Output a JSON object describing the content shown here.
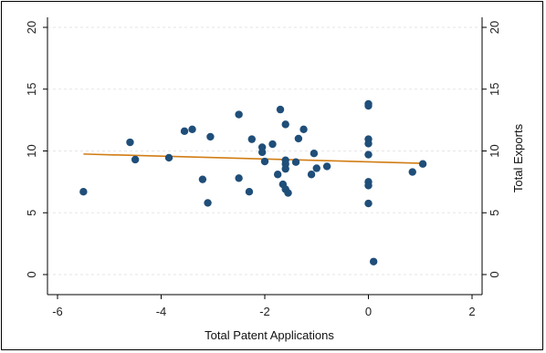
{
  "chart_data": {
    "type": "scatter",
    "title": "",
    "xlabel": "Total Patent Applications",
    "ylabel_left": "",
    "ylabel_right": "Total Exports",
    "xlim": [
      -6,
      2
    ],
    "ylim": [
      0,
      20
    ],
    "x_ticks": [
      -6,
      -4,
      -2,
      0,
      2
    ],
    "y_ticks": [
      0,
      5,
      10,
      15,
      20
    ],
    "grid": "horizontal-dashed",
    "legend": "none",
    "colors": {
      "points": "#1f4e79",
      "fit_line": "#d17d14"
    },
    "fit_line": {
      "x": [
        -5.5,
        1.05
      ],
      "y": [
        9.75,
        9.0
      ]
    },
    "series": [
      {
        "values": [
          {
            "x": -5.5,
            "y": 6.7
          },
          {
            "x": -4.6,
            "y": 10.7
          },
          {
            "x": -4.5,
            "y": 9.3
          },
          {
            "x": -3.85,
            "y": 9.45
          },
          {
            "x": -3.55,
            "y": 11.6
          },
          {
            "x": -3.4,
            "y": 11.75
          },
          {
            "x": -3.2,
            "y": 7.7
          },
          {
            "x": -3.1,
            "y": 5.8
          },
          {
            "x": -3.05,
            "y": 11.15
          },
          {
            "x": -2.5,
            "y": 12.95
          },
          {
            "x": -2.5,
            "y": 7.8
          },
          {
            "x": -2.3,
            "y": 6.7
          },
          {
            "x": -2.25,
            "y": 10.95
          },
          {
            "x": -2.05,
            "y": 10.3
          },
          {
            "x": -2.05,
            "y": 9.9
          },
          {
            "x": -2.0,
            "y": 9.15
          },
          {
            "x": -1.85,
            "y": 10.55
          },
          {
            "x": -1.75,
            "y": 8.1
          },
          {
            "x": -1.7,
            "y": 13.35
          },
          {
            "x": -1.6,
            "y": 12.15
          },
          {
            "x": -1.6,
            "y": 9.25
          },
          {
            "x": -1.6,
            "y": 8.55
          },
          {
            "x": -1.6,
            "y": 8.95
          },
          {
            "x": -1.65,
            "y": 7.3
          },
          {
            "x": -1.6,
            "y": 6.9
          },
          {
            "x": -1.55,
            "y": 6.6
          },
          {
            "x": -1.4,
            "y": 9.1
          },
          {
            "x": -1.35,
            "y": 11.0
          },
          {
            "x": -1.25,
            "y": 11.75
          },
          {
            "x": -1.1,
            "y": 8.1
          },
          {
            "x": -1.05,
            "y": 9.8
          },
          {
            "x": -1.0,
            "y": 8.6
          },
          {
            "x": -0.8,
            "y": 8.75
          },
          {
            "x": 0.0,
            "y": 13.8
          },
          {
            "x": 0.0,
            "y": 13.65
          },
          {
            "x": 0.0,
            "y": 10.95
          },
          {
            "x": 0.0,
            "y": 10.6
          },
          {
            "x": 0.0,
            "y": 9.7
          },
          {
            "x": 0.0,
            "y": 7.5
          },
          {
            "x": 0.0,
            "y": 7.2
          },
          {
            "x": 0.0,
            "y": 5.75
          },
          {
            "x": 0.1,
            "y": 1.05
          },
          {
            "x": 0.85,
            "y": 8.3
          },
          {
            "x": 1.05,
            "y": 8.95
          }
        ]
      }
    ]
  }
}
